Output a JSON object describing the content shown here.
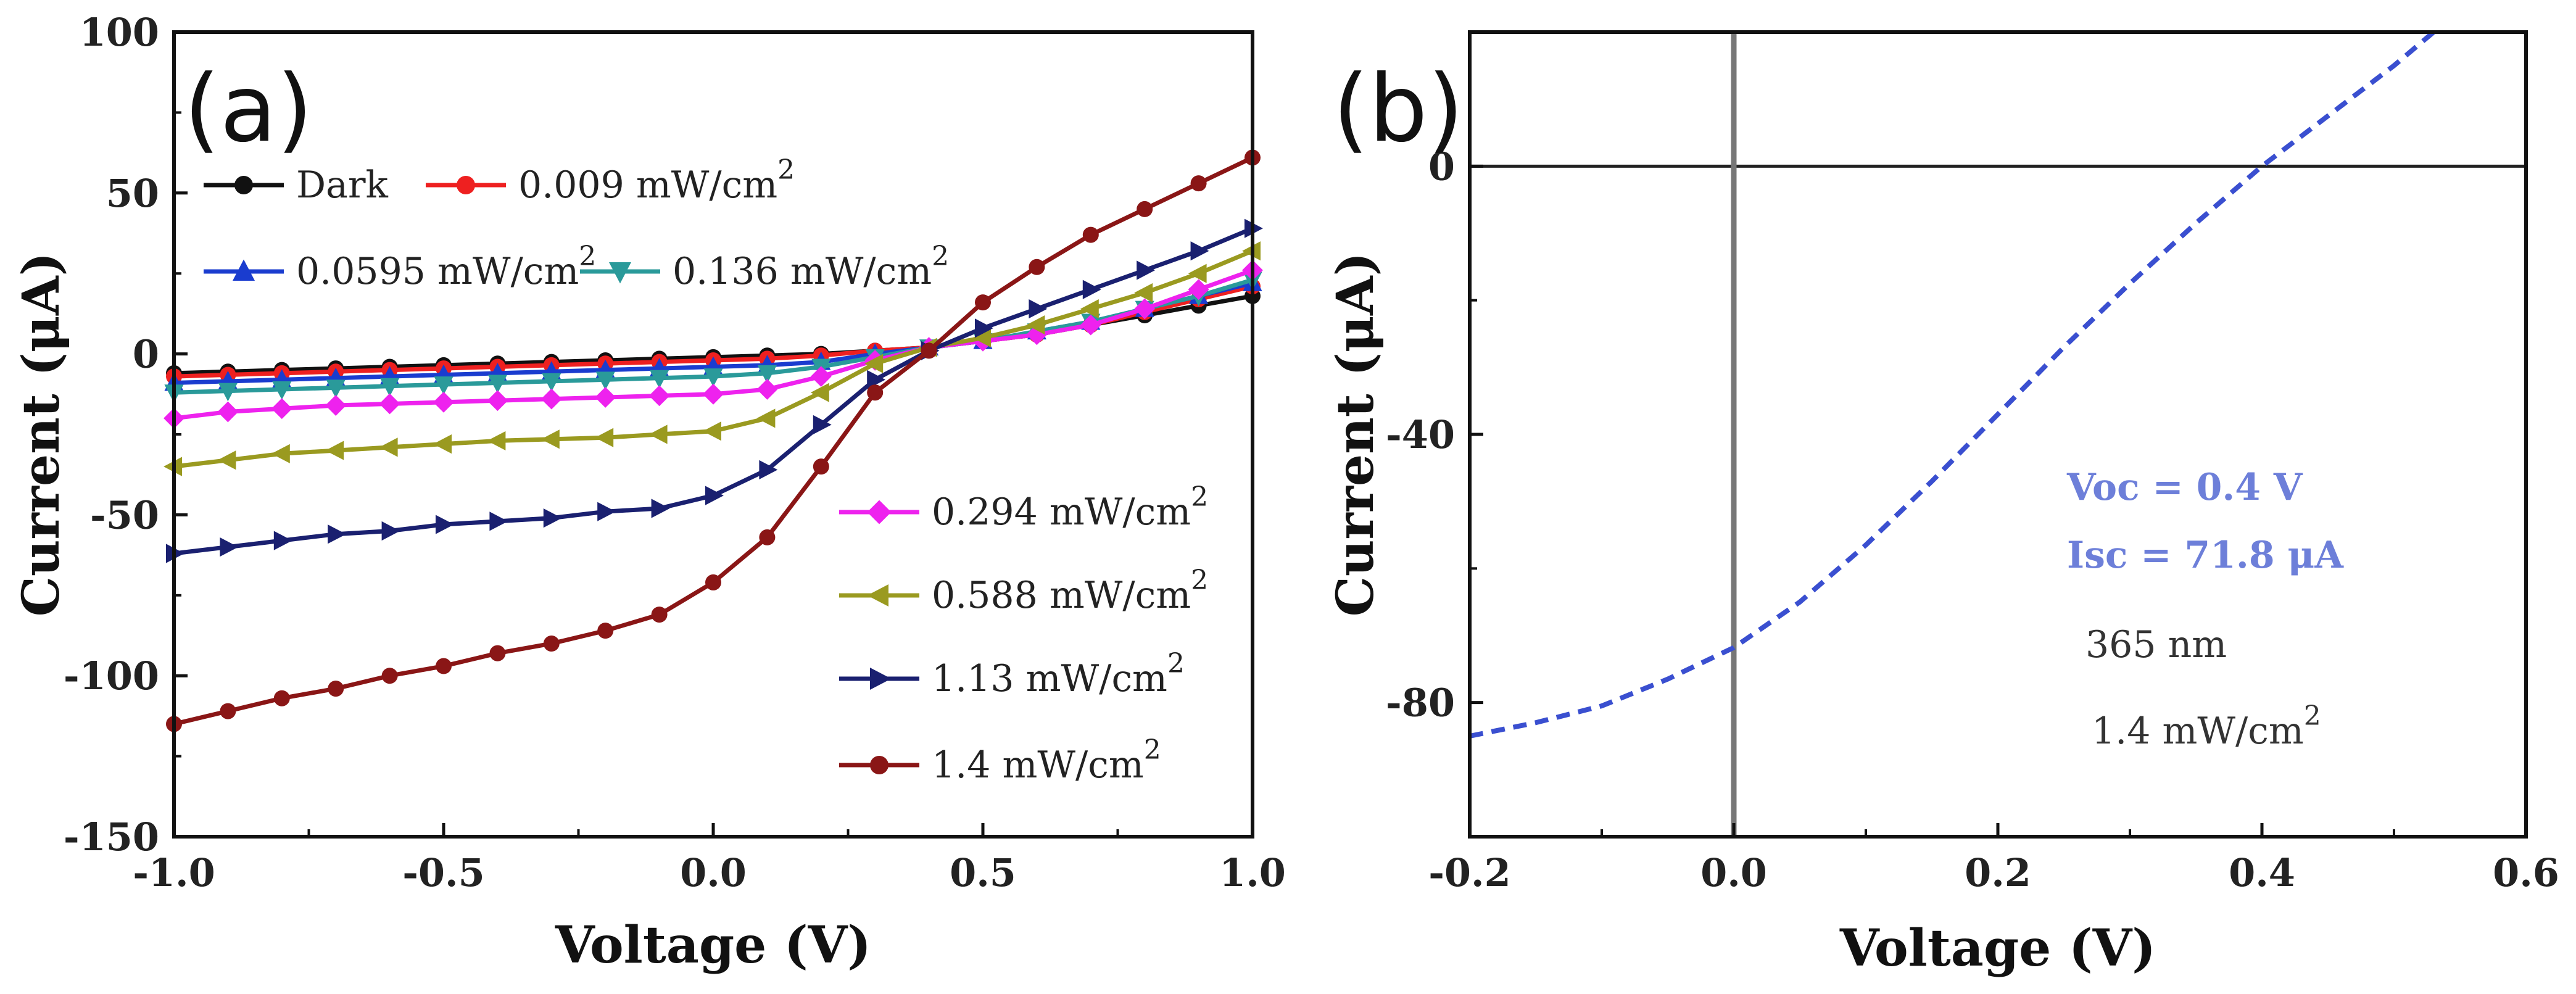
{
  "chart_data": [
    {
      "panel": "(a)",
      "type": "line",
      "xlabel": "Voltage (V)",
      "ylabel": "Current (μA)",
      "xlim": [
        -1.0,
        1.0
      ],
      "ylim": [
        -150,
        100
      ],
      "xticks": [
        "-1.0",
        "-0.5",
        "0.0",
        "0.5",
        "1.0"
      ],
      "yticks": [
        "100",
        "50",
        "0",
        "-50",
        "-100",
        "-150"
      ],
      "x": [
        -1.0,
        -0.9,
        -0.8,
        -0.7,
        -0.6,
        -0.5,
        -0.4,
        -0.3,
        -0.2,
        -0.1,
        0.0,
        0.1,
        0.2,
        0.3,
        0.4,
        0.5,
        0.6,
        0.7,
        0.8,
        0.9,
        1.0
      ],
      "series": [
        {
          "name": "Dark",
          "unit": "",
          "color": "#111111",
          "marker": "circle",
          "values": [
            -6,
            -5.5,
            -5,
            -4.5,
            -4,
            -3.5,
            -3,
            -2.5,
            -2,
            -1.5,
            -1,
            -0.5,
            0,
            1,
            2,
            4,
            6,
            9,
            12,
            15,
            18
          ]
        },
        {
          "name": "0.009 mW/cm",
          "unit": "2",
          "color": "#ee2020",
          "marker": "circle",
          "values": [
            -7,
            -6.5,
            -6,
            -5.5,
            -5,
            -4.5,
            -4,
            -3.5,
            -3,
            -2.5,
            -2,
            -1.5,
            -0.5,
            1,
            2,
            4,
            6,
            9,
            13,
            17,
            21
          ]
        },
        {
          "name": "0.0595 mW/cm",
          "unit": "2",
          "color": "#1a3ccf",
          "marker": "triangle-up",
          "values": [
            -9,
            -8.5,
            -8,
            -7.5,
            -7,
            -6.5,
            -6,
            -5.5,
            -5,
            -4.5,
            -4,
            -3.5,
            -2.5,
            0,
            2,
            4,
            7,
            10,
            14,
            18,
            22
          ]
        },
        {
          "name": "0.136 mW/cm",
          "unit": "2",
          "color": "#2a9a9a",
          "marker": "triangle-down",
          "values": [
            -12,
            -11.5,
            -11,
            -10.5,
            -10,
            -9.5,
            -9,
            -8.5,
            -8,
            -7.5,
            -7,
            -6,
            -4,
            -1,
            2,
            4,
            7,
            10,
            14,
            18,
            23
          ]
        },
        {
          "name": "0.294 mW/cm",
          "unit": "2",
          "color": "#ee22ee",
          "marker": "diamond",
          "values": [
            -20,
            -18,
            -17,
            -16,
            -15.5,
            -15,
            -14.5,
            -14,
            -13.5,
            -13,
            -12.5,
            -11,
            -7,
            -2,
            2,
            4,
            6,
            9,
            14,
            20,
            26
          ]
        },
        {
          "name": "0.588 mW/cm",
          "unit": "2",
          "color": "#9a9a20",
          "marker": "triangle-left",
          "values": [
            -35,
            -33,
            -31,
            -30,
            -29,
            -28,
            -27,
            -26.5,
            -26,
            -25,
            -24,
            -20,
            -12,
            -3,
            2,
            5,
            9,
            14,
            19,
            25,
            32
          ]
        },
        {
          "name": "1.13 mW/cm",
          "unit": "2",
          "color": "#1a2070",
          "marker": "triangle-right",
          "values": [
            -62,
            -60,
            -58,
            -56,
            -55,
            -53,
            -52,
            -51,
            -49,
            -48,
            -44,
            -36,
            -22,
            -8,
            1,
            8,
            14,
            20,
            26,
            32,
            39
          ]
        },
        {
          "name": "1.4 mW/cm",
          "unit": "2",
          "color": "#8a1616",
          "marker": "circle",
          "values": [
            -115,
            -111,
            -107,
            -104,
            -100,
            -97,
            -93,
            -90,
            -86,
            -81,
            -71,
            -57,
            -35,
            -12,
            1,
            16,
            27,
            37,
            45,
            53,
            61
          ]
        }
      ]
    },
    {
      "panel": "(b)",
      "type": "line",
      "xlabel": "Voltage (V)",
      "ylabel": "Current (μA)",
      "xlim": [
        -0.2,
        0.6
      ],
      "ylim": [
        -100,
        20
      ],
      "xticks": [
        "-0.2",
        "0.0",
        "0.2",
        "0.4",
        "0.6"
      ],
      "yticks": [
        "0",
        "-40",
        "-80"
      ],
      "series": [
        {
          "name": "",
          "color": "#3a4fd0",
          "style": "dashed",
          "x": [
            -0.2,
            -0.15,
            -0.1,
            -0.05,
            0.0,
            0.05,
            0.1,
            0.15,
            0.2,
            0.25,
            0.3,
            0.35,
            0.4,
            0.45,
            0.5,
            0.53
          ],
          "values": [
            -85,
            -83,
            -80.5,
            -76.5,
            -71.8,
            -65,
            -56.5,
            -47,
            -37,
            -27,
            -17.5,
            -8.5,
            0,
            7.5,
            15,
            20
          ]
        }
      ],
      "annotations": {
        "voc": "Voc = 0.4 V",
        "isc": "Isc = 71.8 μA",
        "wavelength": "365 nm",
        "intensity": "1.4 mW/cm",
        "intensity_sup": "2"
      }
    }
  ]
}
